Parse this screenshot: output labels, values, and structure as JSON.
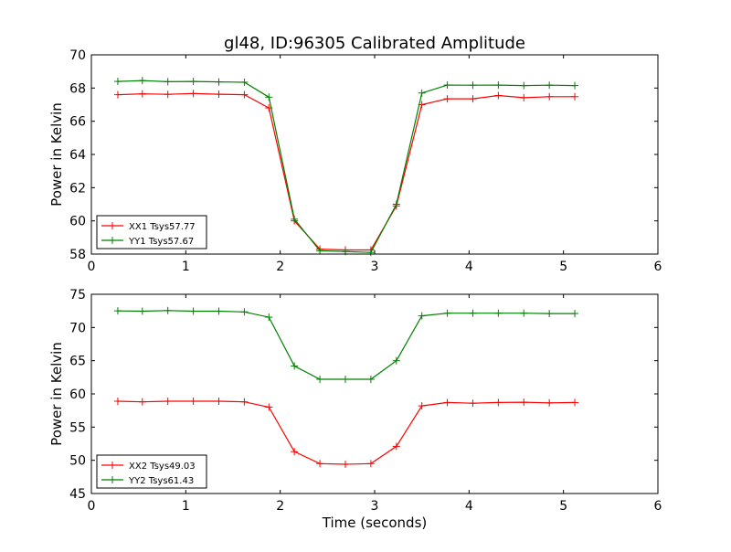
{
  "title": "gl48, ID:96305 Calibrated Amplitude",
  "chart_data": [
    {
      "type": "line",
      "title": "gl48, ID:96305 Calibrated Amplitude",
      "xlabel": "",
      "ylabel": "Power in Kelvin",
      "xlim": [
        0,
        6
      ],
      "ylim": [
        58,
        70
      ],
      "xticks": [
        "0",
        "1",
        "2",
        "3",
        "4",
        "5",
        "6"
      ],
      "yticks": [
        "58",
        "60",
        "62",
        "64",
        "66",
        "68",
        "70"
      ],
      "grid": false,
      "legend_position": "lower-left",
      "x": [
        0.28,
        0.54,
        0.81,
        1.08,
        1.35,
        1.62,
        1.88,
        2.15,
        2.42,
        2.69,
        2.96,
        3.23,
        3.5,
        3.77,
        4.04,
        4.31,
        4.58,
        4.85,
        5.12
      ],
      "series": [
        {
          "name": "XX1 Tsys57.77",
          "color": "#ff0000",
          "values": [
            67.6,
            67.65,
            67.62,
            67.67,
            67.63,
            67.6,
            66.8,
            60.0,
            58.3,
            58.25,
            58.25,
            60.9,
            67.0,
            67.35,
            67.35,
            67.55,
            67.42,
            67.48,
            67.48
          ]
        },
        {
          "name": "YY1 Tsys57.67",
          "color": "#008000",
          "values": [
            68.4,
            68.45,
            68.38,
            68.4,
            68.37,
            68.35,
            67.45,
            60.1,
            58.2,
            58.15,
            58.1,
            61.0,
            67.7,
            68.18,
            68.17,
            68.18,
            68.15,
            68.17,
            68.15
          ]
        }
      ]
    },
    {
      "type": "line",
      "title": "",
      "xlabel": "Time (seconds)",
      "ylabel": "Power in Kelvin",
      "xlim": [
        0,
        6
      ],
      "ylim": [
        45,
        75
      ],
      "xticks": [
        "0",
        "1",
        "2",
        "3",
        "4",
        "5",
        "6"
      ],
      "yticks": [
        "45",
        "50",
        "55",
        "60",
        "65",
        "70",
        "75"
      ],
      "grid": false,
      "legend_position": "lower-left",
      "x": [
        0.28,
        0.54,
        0.81,
        1.08,
        1.35,
        1.62,
        1.88,
        2.15,
        2.42,
        2.69,
        2.96,
        3.23,
        3.5,
        3.77,
        4.04,
        4.31,
        4.58,
        4.85,
        5.12
      ],
      "series": [
        {
          "name": "XX2 Tsys49.03",
          "color": "#ff0000",
          "values": [
            58.9,
            58.8,
            58.9,
            58.9,
            58.9,
            58.8,
            58.0,
            51.3,
            49.5,
            49.4,
            49.5,
            52.1,
            58.2,
            58.7,
            58.6,
            58.7,
            58.75,
            58.65,
            58.7
          ]
        },
        {
          "name": "YY2 Tsys61.43",
          "color": "#008000",
          "values": [
            72.5,
            72.45,
            72.55,
            72.45,
            72.45,
            72.35,
            71.55,
            64.2,
            62.2,
            62.2,
            62.2,
            65.0,
            71.75,
            72.15,
            72.15,
            72.15,
            72.15,
            72.1,
            72.1
          ]
        }
      ]
    }
  ]
}
